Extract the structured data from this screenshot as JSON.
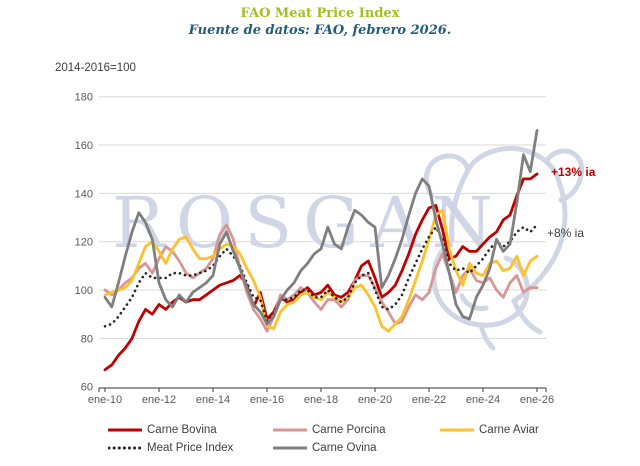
{
  "header": {
    "title": "FAO Meat Price Index",
    "title_color": "#a3bd25",
    "subtitle": "Fuente de datos: FAO, febrero 2026.",
    "subtitle_color": "#1f5c7e"
  },
  "axis_note": "2014-2016=100",
  "watermark": {
    "text": "ROSGAN",
    "icon": "cattle-head-outline",
    "color": "#c9cfe2"
  },
  "annotations": [
    {
      "text": "+13% ia",
      "color": "#c00000",
      "series": "Carne Bovina"
    },
    {
      "text": "+8% ia",
      "color": "#404040",
      "series": "Meat Price Index"
    }
  ],
  "chart_data": {
    "type": "line",
    "title": "FAO Meat Price Index",
    "xlabel": "",
    "ylabel": "2014-2016=100",
    "ylim": [
      60,
      180
    ],
    "y_ticks": [
      60,
      80,
      100,
      120,
      140,
      160,
      180
    ],
    "grid": true,
    "x_start_year": 2010,
    "points_per_year": 4,
    "x_tick_years": [
      2010,
      2012,
      2014,
      2016,
      2018,
      2020,
      2022,
      2024,
      2026
    ],
    "x_tick_labels": [
      "ene-10",
      "ene-12",
      "ene-14",
      "ene-16",
      "ene-18",
      "ene-20",
      "ene-22",
      "ene-24",
      "ene-26"
    ],
    "series": [
      {
        "name": "Carne Bovina",
        "color": "#c00000",
        "style": "solid",
        "width": 2.8,
        "values": [
          67,
          69,
          73,
          76,
          80,
          87,
          92,
          90,
          94,
          92,
          95,
          97,
          95,
          96,
          96,
          98,
          100,
          102,
          103,
          104,
          106,
          102,
          93,
          99,
          88,
          91,
          97,
          95,
          96,
          99,
          101,
          98,
          99,
          102,
          98,
          97,
          99,
          104,
          110,
          112,
          105,
          97,
          99,
          102,
          108,
          115,
          123,
          129,
          134,
          135,
          125,
          113,
          114,
          118,
          116,
          116,
          119,
          122,
          124,
          129,
          131,
          139,
          146,
          146,
          148
        ]
      },
      {
        "name": "Carne Porcina",
        "color": "#d99694",
        "style": "solid",
        "width": 2.8,
        "values": [
          100,
          98,
          100,
          103,
          105,
          109,
          111,
          107,
          113,
          118,
          116,
          112,
          107,
          105,
          107,
          109,
          113,
          123,
          127,
          121,
          109,
          99,
          92,
          88,
          83,
          89,
          98,
          96,
          98,
          101,
          99,
          95,
          92,
          96,
          96,
          93,
          96,
          104,
          106,
          106,
          101,
          95,
          91,
          86,
          87,
          93,
          98,
          96,
          99,
          109,
          115,
          107,
          99,
          106,
          109,
          104,
          103,
          105,
          100,
          97,
          103,
          106,
          99,
          101,
          101
        ]
      },
      {
        "name": "Carne Aviar",
        "color": "#fdc12c",
        "style": "solid",
        "width": 2.8,
        "values": [
          98,
          99,
          100,
          101,
          104,
          111,
          118,
          120,
          116,
          111,
          117,
          121,
          122,
          117,
          113,
          113,
          114,
          117,
          119,
          118,
          115,
          109,
          104,
          97,
          85,
          84,
          91,
          94,
          95,
          98,
          99,
          97,
          96,
          99,
          97,
          95,
          97,
          101,
          102,
          98,
          93,
          85,
          83,
          86,
          89,
          96,
          104,
          112,
          121,
          131,
          133,
          117,
          108,
          102,
          111,
          107,
          106,
          111,
          112,
          108,
          109,
          114,
          106,
          112,
          114
        ]
      },
      {
        "name": "Meat Price Index",
        "color": "#262626",
        "style": "dotted",
        "width": 2.6,
        "values": [
          85,
          86,
          89,
          93,
          97,
          103,
          107,
          105,
          105,
          105,
          107,
          107,
          106,
          106,
          107,
          108,
          110,
          114,
          117,
          114,
          110,
          103,
          97,
          96,
          87,
          90,
          96,
          96,
          97,
          100,
          100,
          97,
          97,
          100,
          97,
          95,
          97,
          103,
          106,
          107,
          100,
          93,
          92,
          94,
          98,
          105,
          111,
          117,
          122,
          126,
          121,
          111,
          108,
          109,
          107,
          110,
          113,
          117,
          120,
          118,
          120,
          124,
          126,
          124,
          127
        ]
      },
      {
        "name": "Carne Ovina",
        "color": "#7f7f7f",
        "style": "solid",
        "width": 2.8,
        "values": [
          97,
          93,
          103,
          114,
          124,
          132,
          128,
          121,
          103,
          96,
          93,
          98,
          95,
          99,
          101,
          103,
          106,
          119,
          124,
          116,
          109,
          101,
          94,
          91,
          86,
          89,
          96,
          100,
          103,
          108,
          111,
          115,
          117,
          126,
          119,
          117,
          126,
          133,
          131,
          128,
          126,
          101,
          106,
          113,
          121,
          131,
          140,
          146,
          143,
          129,
          119,
          107,
          94,
          89,
          88,
          97,
          102,
          109,
          121,
          116,
          119,
          136,
          156,
          149,
          166
        ]
      }
    ],
    "legend_rows": [
      [
        "Carne Bovina",
        "Carne Porcina",
        "Carne Aviar"
      ],
      [
        "Meat Price Index",
        "Carne Ovina"
      ]
    ],
    "legend_position": "bottom"
  }
}
